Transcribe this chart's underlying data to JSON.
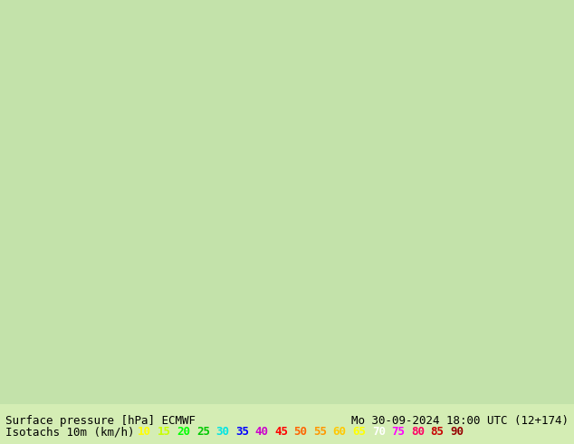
{
  "title_left": "Surface pressure [hPa] ECMWF",
  "title_right": "Mo 30-09-2024 18:00 UTC (12+174)",
  "legend_label": "Isotachs 10m (km/h)",
  "isotach_values": [
    10,
    15,
    20,
    25,
    30,
    35,
    40,
    45,
    50,
    55,
    60,
    65,
    70,
    75,
    80,
    85,
    90
  ],
  "isotach_colors": [
    "#ffff00",
    "#c8ff00",
    "#00ff00",
    "#00c800",
    "#00ffff",
    "#0000ff",
    "#ff00ff",
    "#ff0000",
    "#ff6400",
    "#ff9600",
    "#ffc800",
    "#ffff00",
    "#ffffff",
    "#ff00ff",
    "#ff0064",
    "#c80000",
    "#960000"
  ],
  "bg_color": "#d4edb4",
  "map_bg": "#b4d4a0",
  "bottom_bar_color": "#e8e8e8",
  "font_size_bottom": 9,
  "fig_width": 6.34,
  "fig_height": 4.9,
  "dpi": 100
}
